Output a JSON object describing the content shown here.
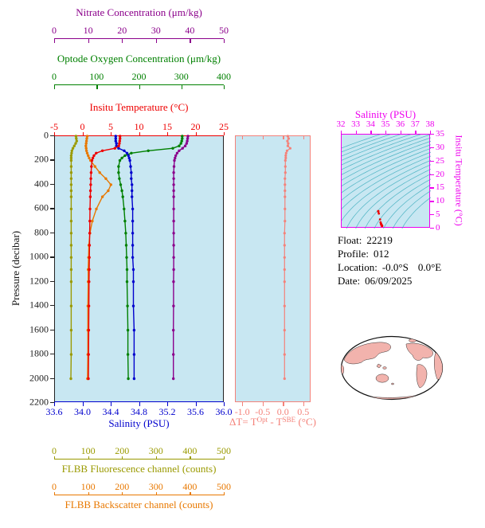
{
  "colors": {
    "plot_bg": "#C8E7F2",
    "contour": "#30A8B8",
    "ts_axis": "#EE00EE",
    "frame": "#222222",
    "map_land": "#F2B3AD"
  },
  "float_info": {
    "float_label": "Float:",
    "float_value": "22219",
    "profile_label": "Profile:",
    "profile_value": "012",
    "location_label": "Location:",
    "location_lat": "-0.0°S",
    "location_lon": "0.0°E",
    "date_label": "Date:",
    "date_value": "06/09/2025"
  },
  "chart_data": [
    {
      "type": "line",
      "ylabel": "Pressure (decibar)",
      "ylim": [
        0,
        2200
      ],
      "ytick_labels": [
        "0",
        "200",
        "400",
        "600",
        "800",
        "1000",
        "1200",
        "1400",
        "1600",
        "1800",
        "2000",
        "2200"
      ],
      "pressure": [
        0,
        20,
        40,
        60,
        80,
        100,
        120,
        140,
        160,
        180,
        200,
        250,
        300,
        350,
        400,
        450,
        500,
        600,
        700,
        800,
        900,
        1000,
        1100,
        1200,
        1400,
        1600,
        1800,
        2000
      ],
      "series": [
        {
          "name": "Nitrate Concentration (μm/kg)",
          "color": "#8B008B",
          "xlim": [
            0,
            50
          ],
          "tick_labels": [
            "0",
            "10",
            "20",
            "30",
            "40",
            "50"
          ],
          "values": [
            39.2,
            39.1,
            39.0,
            38.8,
            38.4,
            37.6,
            36.6,
            36.0,
            35.6,
            35.4,
            35.2,
            35.1,
            35.0,
            35.0,
            35.0,
            35.0,
            35.0,
            35.0,
            35.0,
            35.0,
            35.0,
            35.0,
            35.0,
            34.95,
            34.95,
            34.9,
            34.9,
            34.9
          ]
        },
        {
          "name": "Optode Oxygen Concentration (μm/kg)",
          "color": "#008000",
          "xlim": [
            0,
            400
          ],
          "tick_labels": [
            "0",
            "100",
            "200",
            "300",
            "400"
          ],
          "values": [
            300,
            300,
            299,
            297,
            293,
            278,
            220,
            180,
            165,
            158,
            153,
            150,
            150,
            152,
            155,
            158,
            160,
            163,
            165,
            167,
            168,
            169,
            170,
            170,
            171,
            172,
            172,
            173
          ]
        },
        {
          "name": "Insitu Temperature (°C)",
          "color": "#EE0000",
          "xlim": [
            -5,
            25
          ],
          "tick_labels": [
            "-5",
            "0",
            "5",
            "10",
            "15",
            "20",
            "25"
          ],
          "values": [
            6.5,
            6.5,
            6.45,
            6.4,
            6.3,
            5.6,
            3.4,
            2.3,
            1.9,
            1.7,
            1.55,
            1.45,
            1.4,
            1.35,
            1.32,
            1.28,
            1.25,
            1.2,
            1.17,
            1.14,
            1.11,
            1.08,
            1.05,
            1.03,
            1.0,
            0.97,
            0.94,
            0.92
          ]
        },
        {
          "name": "Salinity (PSU)",
          "color": "#0000CD",
          "xlim": [
            33.6,
            36.0
          ],
          "tick_labels": [
            "33.6",
            "34.0",
            "34.4",
            "34.8",
            "35.2",
            "35.6",
            "36.0"
          ],
          "values": [
            34.46,
            34.46,
            34.46,
            34.47,
            34.47,
            34.5,
            34.58,
            34.62,
            34.64,
            34.65,
            34.66,
            34.67,
            34.68,
            34.68,
            34.69,
            34.69,
            34.69,
            34.7,
            34.7,
            34.7,
            34.7,
            34.7,
            34.71,
            34.71,
            34.71,
            34.72,
            34.72,
            34.72
          ]
        },
        {
          "name": "FLBB Fluorescence channel (counts)",
          "color": "#9A9A00",
          "xlim": [
            0,
            500
          ],
          "tick_labels": [
            "0",
            "100",
            "200",
            "300",
            "400",
            "500"
          ],
          "values": [
            62,
            63,
            64,
            61,
            57,
            53,
            50,
            49,
            48,
            48,
            48,
            48,
            48,
            48,
            48,
            48,
            48,
            48,
            48,
            48,
            48,
            48,
            48,
            48,
            48,
            48,
            48,
            47
          ]
        },
        {
          "name": "FLBB Backscatter channel (counts)",
          "color": "#E87800",
          "xlim": [
            0,
            500
          ],
          "tick_labels": [
            "0",
            "100",
            "200",
            "300",
            "400",
            "500"
          ],
          "values": [
            95,
            94,
            93,
            92,
            91,
            92,
            93,
            95,
            98,
            101,
            105,
            118,
            132,
            150,
            165,
            157,
            140,
            122,
            110,
            103,
            100,
            99,
            98,
            98,
            97,
            97,
            97,
            96
          ]
        }
      ]
    },
    {
      "type": "scatter",
      "xlabel_parts": [
        "ΔT= T",
        "Opt",
        " - T",
        "SBE",
        " (°C)"
      ],
      "color": "#F4827A",
      "xlim": [
        -1.18,
        0.68
      ],
      "tick_labels": [
        "-1.0",
        "-0.5",
        "0.0",
        "0.5"
      ],
      "pressure": [
        0,
        20,
        40,
        60,
        80,
        100,
        120,
        140,
        160,
        180,
        200,
        250,
        300,
        350,
        400,
        450,
        500,
        600,
        700,
        800,
        900,
        1000,
        1100,
        1200,
        1400,
        1600,
        1800,
        2000
      ],
      "values": [
        0.1,
        0.12,
        0.09,
        0.11,
        0.1,
        0.16,
        0.08,
        0.06,
        0.05,
        0.05,
        0.04,
        0.04,
        0.04,
        0.03,
        0.03,
        0.03,
        0.03,
        0.03,
        0.03,
        0.02,
        0.02,
        0.02,
        0.02,
        0.02,
        0.02,
        0.02,
        0.02,
        0.02
      ]
    },
    {
      "type": "scatter",
      "title": "Salinity (PSU)",
      "ylabel": "Insitu Temperature (°C)",
      "xlim": [
        32,
        38
      ],
      "xtick_labels": [
        "32",
        "33",
        "34",
        "35",
        "36",
        "37",
        "38"
      ],
      "ylim": [
        0,
        35
      ],
      "ytick_labels": [
        "0",
        "5",
        "10",
        "15",
        "20",
        "25",
        "30",
        "35"
      ],
      "sigma_levels": [
        19.5,
        20,
        20.5,
        21,
        21.5,
        22,
        22.5,
        23,
        23.5,
        24,
        24.5,
        25,
        25.5,
        26,
        26.5,
        27,
        27.5,
        28,
        28.5,
        29
      ],
      "point_color": "#EE0000"
    }
  ]
}
